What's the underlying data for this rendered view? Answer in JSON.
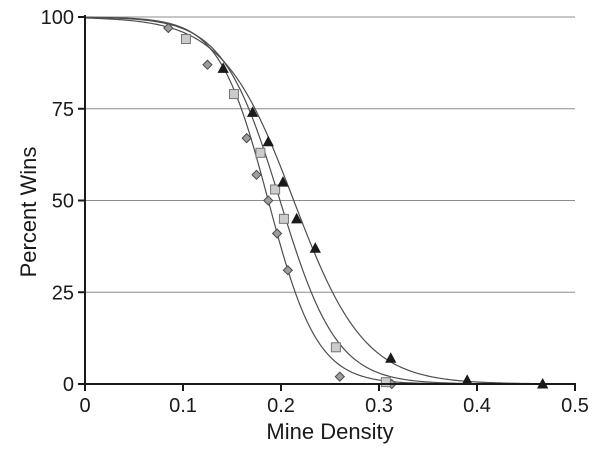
{
  "chart_data": {
    "type": "scatter",
    "xlabel": "Mine Density",
    "ylabel": "Percent Wins",
    "xlim": [
      0,
      0.5
    ],
    "ylim": [
      0,
      100
    ],
    "xticks": {
      "values": [
        0,
        0.1,
        0.2,
        0.3,
        0.4,
        0.5
      ],
      "labels": [
        "0",
        "0.1",
        "0.2",
        "0.3",
        "0.4",
        "0.5"
      ]
    },
    "yticks": {
      "values": [
        0,
        25,
        50,
        75,
        100
      ],
      "labels": [
        "0",
        "25",
        "50",
        "75",
        "100"
      ]
    },
    "gridlines_y": [
      25,
      50,
      75,
      100
    ],
    "grid": "horizontal-only",
    "legend": "none",
    "colors": {
      "background": "#ffffff",
      "axis": "#1a1a1a",
      "gridline": "#8c8c8c",
      "curve": "#4d4d4d",
      "text": "#1a1a1a"
    },
    "series": [
      {
        "name": "diamond-series",
        "marker": "diamond",
        "fill": "#9e9e9e",
        "stroke": "#4a4a4a",
        "fit_curve": {
          "model": "logistic",
          "midpoint": 0.187,
          "scale": 0.025,
          "max": 100
        },
        "points": [
          [
            0.085,
            97
          ],
          [
            0.125,
            87
          ],
          [
            0.165,
            67
          ],
          [
            0.175,
            57
          ],
          [
            0.187,
            50
          ],
          [
            0.196,
            41
          ],
          [
            0.207,
            31
          ],
          [
            0.26,
            2
          ],
          [
            0.313,
            0
          ]
        ]
      },
      {
        "name": "square-series",
        "marker": "square",
        "fill": "#cccccc",
        "stroke": "#757575",
        "fit_curve": {
          "model": "logistic",
          "midpoint": 0.199,
          "scale": 0.029,
          "max": 100
        },
        "points": [
          [
            0.103,
            94
          ],
          [
            0.152,
            79
          ],
          [
            0.179,
            63
          ],
          [
            0.194,
            53
          ],
          [
            0.203,
            45
          ],
          [
            0.256,
            10
          ],
          [
            0.307,
            0.5
          ]
        ]
      },
      {
        "name": "triangle-series",
        "marker": "triangle",
        "fill": "#1a1a1a",
        "stroke": "#1a1a1a",
        "fit_curve": {
          "model": "logistic",
          "midpoint": 0.213,
          "scale": 0.036,
          "max": 100
        },
        "points": [
          [
            0.141,
            86
          ],
          [
            0.171,
            74
          ],
          [
            0.187,
            66
          ],
          [
            0.202,
            55
          ],
          [
            0.216,
            45
          ],
          [
            0.235,
            37
          ],
          [
            0.312,
            7
          ],
          [
            0.39,
            1
          ],
          [
            0.467,
            0
          ]
        ]
      }
    ]
  }
}
